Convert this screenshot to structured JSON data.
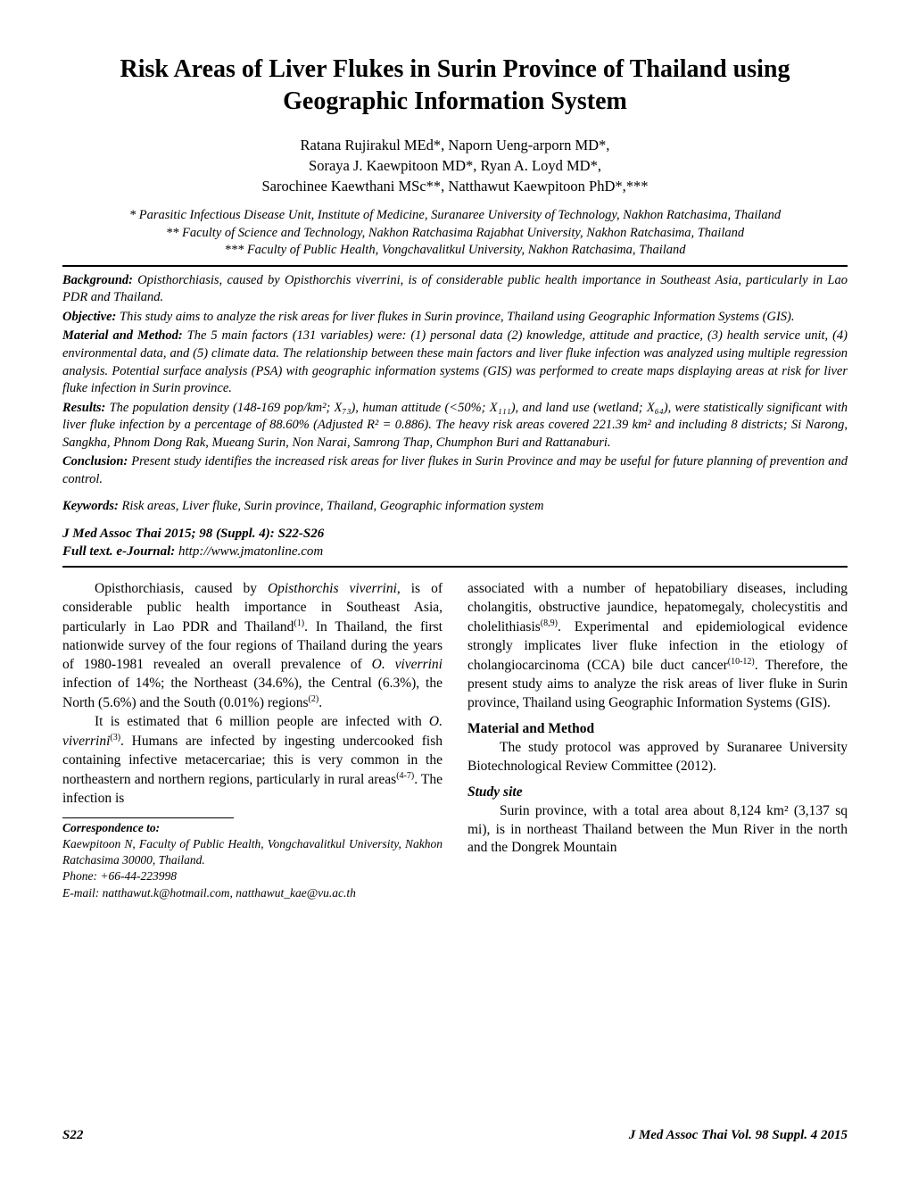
{
  "title": "Risk Areas of Liver Flukes in Surin Province of Thailand using Geographic Information System",
  "authors_line1": "Ratana Rujirakul MEd*, Naporn Ueng-arporn MD*,",
  "authors_line2": "Soraya J. Kaewpitoon MD*, Ryan A. Loyd MD*,",
  "authors_line3": "Sarochinee Kaewthani MSc**, Natthawut Kaewpitoon PhD*,***",
  "aff1": "* Parasitic Infectious Disease Unit, Institute of Medicine, Suranaree University of Technology, Nakhon Ratchasima, Thailand",
  "aff2": "** Faculty of Science and Technology, Nakhon Ratchasima Rajabhat University, Nakhon Ratchasima, Thailand",
  "aff3": "*** Faculty of Public Health, Vongchavalitkul University, Nakhon Ratchasima, Thailand",
  "abstract": {
    "background_label": "Background:",
    "background": " Opisthorchiasis, caused by Opisthorchis viverrini, is of considerable public health importance in Southeast Asia, particularly in Lao PDR and Thailand.",
    "objective_label": "Objective:",
    "objective": " This study aims to analyze the risk areas for liver flukes in Surin province, Thailand using Geographic Information Systems (GIS).",
    "method_label": "Material and Method:",
    "method": " The 5 main factors (131 variables) were: (1) personal data (2) knowledge, attitude and practice, (3) health service unit, (4) environmental data, and (5) climate data. The relationship between these main factors and liver fluke infection was analyzed using multiple regression analysis. Potential surface analysis (PSA) with geographic information systems (GIS) was performed to create maps displaying areas at risk for liver fluke infection in Surin province.",
    "results_label": "Results:",
    "results": " The population density (148-169 pop/km²; X₇₃), human attitude (<50%; X₁₁₁), and land use (wetland; X₆₄), were statistically significant with liver fluke infection by a percentage of 88.60% (Adjusted R² = 0.886). The heavy risk areas covered 221.39 km² and including 8 districts; Si Narong, Sangkha, Phnom Dong Rak, Mueang Surin, Non Narai, Samrong Thap, Chumphon Buri and Rattanaburi.",
    "conclusion_label": "Conclusion:",
    "conclusion": " Present study identifies the increased risk areas for liver flukes in Surin Province and may be useful for future planning of prevention and control."
  },
  "keywords_label": "Keywords:",
  "keywords": " Risk areas, Liver fluke, Surin province, Thailand, Geographic information system",
  "citation_line1": "J Med Assoc Thai 2015; 98 (Suppl. 4): S22-S26",
  "citation_line2_label": "Full text. e-Journal: ",
  "citation_line2_url": "http://www.jmatonline.com",
  "body": {
    "left_p1a": "Opisthorchiasis, caused by ",
    "left_p1_ital": "Opisthorchis viverrini",
    "left_p1b": ", is of considerable public health importance in Southeast Asia, particularly in Lao PDR and Thailand",
    "left_p1_ref1": "(1)",
    "left_p1c": ". In Thailand, the first nationwide survey of the four regions of Thailand during the years of 1980-1981 revealed an overall prevalence of ",
    "left_p1_ital2": "O. viverrini",
    "left_p1d": " infection of 14%; the Northeast (34.6%), the Central (6.3%), the North (5.6%) and the South (0.01%) regions",
    "left_p1_ref2": "(2)",
    "left_p1e": ".",
    "left_p2a": "It is estimated that 6 million people are infected with ",
    "left_p2_ital": "O. viverrini",
    "left_p2_ref3": "(3)",
    "left_p2b": ". Humans are infected by ingesting undercooked fish containing infective metacercariae; this is very common in the northeastern and northern regions, particularly in rural areas",
    "left_p2_ref47": "(4-7)",
    "left_p2c": ". The infection is",
    "right_p1a": "associated with a number of hepatobiliary diseases, including cholangitis, obstructive jaundice, hepatomegaly, cholecystitis and cholelithiasis",
    "right_p1_ref89": "(8,9)",
    "right_p1b": ". Experimental and epidemiological evidence strongly implicates liver fluke infection in the etiology of cholangiocarcinoma (CCA) bile duct cancer",
    "right_p1_ref1012": "(10-12)",
    "right_p1c": ". Therefore, the present study aims to analyze the risk areas of liver fluke in Surin province, Thailand using Geographic Information Systems (GIS).",
    "mm_header": "Material and Method",
    "mm_p1": "The study protocol was approved by Suranaree University Biotechnological Review Committee (2012).",
    "study_header": "Study site",
    "study_p1": "Surin province, with a total area about 8,124 km² (3,137 sq mi), is in northeast Thailand between the Mun River in the north and the Dongrek Mountain"
  },
  "correspondence": {
    "header": "Correspondence to:",
    "line1": "Kaewpitoon N, Faculty of Public Health, Vongchavalitkul University, Nakhon Ratchasima 30000, Thailand.",
    "line2": "Phone: +66-44-223998",
    "line3": "E-mail: natthawut.k@hotmail.com, natthawut_kae@vu.ac.th"
  },
  "footer": {
    "left": "S22",
    "right": "J Med Assoc Thai Vol. 98 Suppl. 4  2015"
  }
}
